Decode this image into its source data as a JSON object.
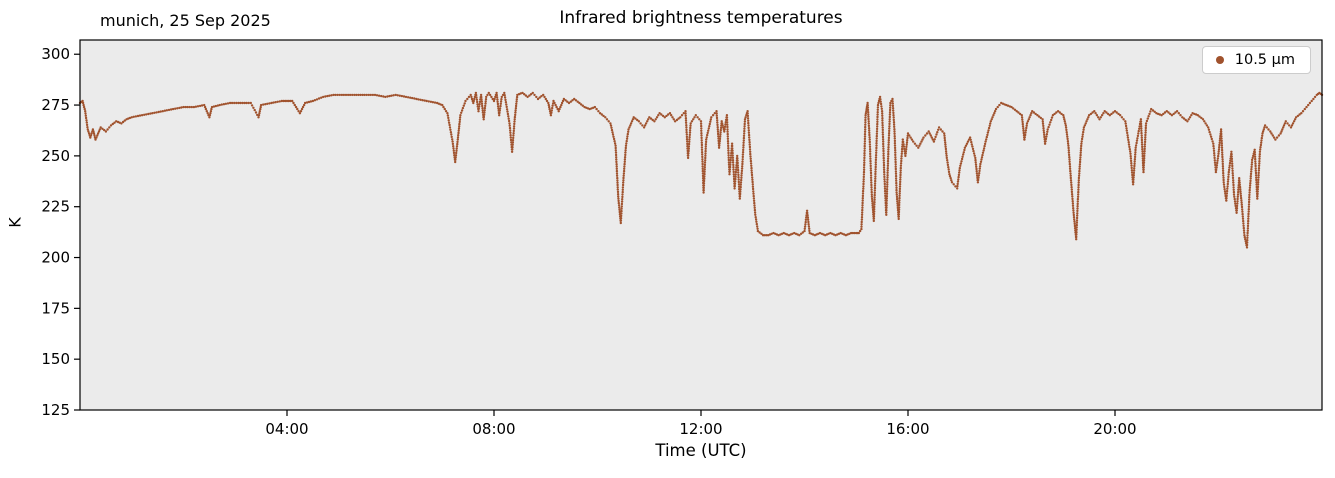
{
  "chart_data": {
    "type": "scatter",
    "title": "Infrared brightness temperatures",
    "annotation": "munich, 25 Sep 2025",
    "xlabel": "Time (UTC)",
    "ylabel": "K",
    "xlim": [
      0,
      24
    ],
    "ylim": [
      125,
      307
    ],
    "grid": false,
    "plot_bg": "#ebebeb",
    "spine_color": "#000000",
    "xticks": [
      {
        "t": 4,
        "label": "04:00"
      },
      {
        "t": 8,
        "label": "08:00"
      },
      {
        "t": 12,
        "label": "12:00"
      },
      {
        "t": 16,
        "label": "16:00"
      },
      {
        "t": 20,
        "label": "20:00"
      }
    ],
    "yticks": [
      {
        "v": 300,
        "label": "300"
      },
      {
        "v": 275,
        "label": "275"
      },
      {
        "v": 250,
        "label": "250"
      },
      {
        "v": 225,
        "label": "225"
      },
      {
        "v": 200,
        "label": "200"
      },
      {
        "v": 175,
        "label": "175"
      },
      {
        "v": 150,
        "label": "150"
      },
      {
        "v": 125,
        "label": "125"
      }
    ],
    "legend": {
      "position": "upper right",
      "entries": [
        {
          "label": "10.5 µm",
          "color": "#a0522d",
          "marker": "dot"
        }
      ]
    },
    "series": [
      {
        "name": "10.5 µm",
        "color": "#a0522d",
        "x_units": "hours UTC",
        "y_units": "K",
        "points": [
          [
            0.0,
            276
          ],
          [
            0.05,
            277
          ],
          [
            0.1,
            272
          ],
          [
            0.15,
            263
          ],
          [
            0.2,
            259
          ],
          [
            0.25,
            263
          ],
          [
            0.3,
            258
          ],
          [
            0.35,
            261
          ],
          [
            0.4,
            264
          ],
          [
            0.5,
            262
          ],
          [
            0.6,
            265
          ],
          [
            0.7,
            267
          ],
          [
            0.8,
            266
          ],
          [
            0.9,
            268
          ],
          [
            1.0,
            269
          ],
          [
            1.2,
            270
          ],
          [
            1.4,
            271
          ],
          [
            1.6,
            272
          ],
          [
            1.8,
            273
          ],
          [
            2.0,
            274
          ],
          [
            2.2,
            274
          ],
          [
            2.4,
            275
          ],
          [
            2.5,
            269
          ],
          [
            2.55,
            274
          ],
          [
            2.7,
            275
          ],
          [
            2.9,
            276
          ],
          [
            3.1,
            276
          ],
          [
            3.3,
            276
          ],
          [
            3.45,
            269
          ],
          [
            3.5,
            275
          ],
          [
            3.7,
            276
          ],
          [
            3.9,
            277
          ],
          [
            4.0,
            277
          ],
          [
            4.1,
            277
          ],
          [
            4.25,
            271
          ],
          [
            4.35,
            276
          ],
          [
            4.5,
            277
          ],
          [
            4.7,
            279
          ],
          [
            4.9,
            280
          ],
          [
            5.1,
            280
          ],
          [
            5.3,
            280
          ],
          [
            5.5,
            280
          ],
          [
            5.7,
            280
          ],
          [
            5.9,
            279
          ],
          [
            6.1,
            280
          ],
          [
            6.3,
            279
          ],
          [
            6.5,
            278
          ],
          [
            6.7,
            277
          ],
          [
            6.9,
            276
          ],
          [
            7.0,
            275
          ],
          [
            7.1,
            271
          ],
          [
            7.2,
            257
          ],
          [
            7.25,
            247
          ],
          [
            7.3,
            258
          ],
          [
            7.35,
            270
          ],
          [
            7.45,
            277
          ],
          [
            7.55,
            280
          ],
          [
            7.6,
            276
          ],
          [
            7.65,
            281
          ],
          [
            7.7,
            272
          ],
          [
            7.75,
            280
          ],
          [
            7.8,
            268
          ],
          [
            7.85,
            279
          ],
          [
            7.9,
            281
          ],
          [
            8.0,
            277
          ],
          [
            8.05,
            281
          ],
          [
            8.1,
            270
          ],
          [
            8.15,
            279
          ],
          [
            8.2,
            281
          ],
          [
            8.3,
            266
          ],
          [
            8.35,
            252
          ],
          [
            8.4,
            268
          ],
          [
            8.45,
            280
          ],
          [
            8.55,
            281
          ],
          [
            8.65,
            279
          ],
          [
            8.75,
            281
          ],
          [
            8.85,
            278
          ],
          [
            8.95,
            280
          ],
          [
            9.05,
            276
          ],
          [
            9.1,
            270
          ],
          [
            9.15,
            277
          ],
          [
            9.25,
            272
          ],
          [
            9.35,
            278
          ],
          [
            9.45,
            276
          ],
          [
            9.55,
            278
          ],
          [
            9.65,
            276
          ],
          [
            9.75,
            274
          ],
          [
            9.85,
            273
          ],
          [
            9.95,
            274
          ],
          [
            10.05,
            271
          ],
          [
            10.15,
            269
          ],
          [
            10.25,
            266
          ],
          [
            10.35,
            255
          ],
          [
            10.4,
            230
          ],
          [
            10.45,
            217
          ],
          [
            10.5,
            238
          ],
          [
            10.55,
            255
          ],
          [
            10.6,
            263
          ],
          [
            10.7,
            269
          ],
          [
            10.8,
            267
          ],
          [
            10.9,
            264
          ],
          [
            11.0,
            269
          ],
          [
            11.1,
            267
          ],
          [
            11.2,
            271
          ],
          [
            11.3,
            269
          ],
          [
            11.4,
            271
          ],
          [
            11.5,
            267
          ],
          [
            11.6,
            269
          ],
          [
            11.7,
            272
          ],
          [
            11.75,
            249
          ],
          [
            11.8,
            266
          ],
          [
            11.9,
            270
          ],
          [
            12.0,
            267
          ],
          [
            12.05,
            232
          ],
          [
            12.1,
            258
          ],
          [
            12.2,
            269
          ],
          [
            12.3,
            272
          ],
          [
            12.35,
            254
          ],
          [
            12.4,
            267
          ],
          [
            12.45,
            262
          ],
          [
            12.5,
            270
          ],
          [
            12.55,
            241
          ],
          [
            12.6,
            256
          ],
          [
            12.65,
            234
          ],
          [
            12.7,
            250
          ],
          [
            12.75,
            229
          ],
          [
            12.8,
            246
          ],
          [
            12.85,
            268
          ],
          [
            12.9,
            272
          ],
          [
            12.95,
            252
          ],
          [
            13.0,
            236
          ],
          [
            13.05,
            221
          ],
          [
            13.1,
            213
          ],
          [
            13.2,
            211
          ],
          [
            13.3,
            211
          ],
          [
            13.4,
            212
          ],
          [
            13.5,
            211
          ],
          [
            13.6,
            212
          ],
          [
            13.7,
            211
          ],
          [
            13.8,
            212
          ],
          [
            13.9,
            211
          ],
          [
            14.0,
            213
          ],
          [
            14.05,
            223
          ],
          [
            14.1,
            212
          ],
          [
            14.2,
            211
          ],
          [
            14.3,
            212
          ],
          [
            14.4,
            211
          ],
          [
            14.5,
            212
          ],
          [
            14.6,
            211
          ],
          [
            14.7,
            212
          ],
          [
            14.8,
            211
          ],
          [
            14.9,
            212
          ],
          [
            15.0,
            212
          ],
          [
            15.05,
            212
          ],
          [
            15.1,
            214
          ],
          [
            15.15,
            242
          ],
          [
            15.18,
            270
          ],
          [
            15.22,
            276
          ],
          [
            15.26,
            258
          ],
          [
            15.3,
            231
          ],
          [
            15.34,
            218
          ],
          [
            15.38,
            248
          ],
          [
            15.42,
            275
          ],
          [
            15.46,
            279
          ],
          [
            15.5,
            272
          ],
          [
            15.54,
            242
          ],
          [
            15.58,
            221
          ],
          [
            15.62,
            252
          ],
          [
            15.66,
            276
          ],
          [
            15.7,
            278
          ],
          [
            15.74,
            262
          ],
          [
            15.78,
            232
          ],
          [
            15.82,
            219
          ],
          [
            15.86,
            244
          ],
          [
            15.9,
            258
          ],
          [
            15.95,
            250
          ],
          [
            16.0,
            261
          ],
          [
            16.1,
            257
          ],
          [
            16.2,
            254
          ],
          [
            16.3,
            259
          ],
          [
            16.4,
            262
          ],
          [
            16.5,
            257
          ],
          [
            16.6,
            264
          ],
          [
            16.7,
            261
          ],
          [
            16.75,
            249
          ],
          [
            16.8,
            241
          ],
          [
            16.85,
            237
          ],
          [
            16.95,
            234
          ],
          [
            17.0,
            244
          ],
          [
            17.1,
            254
          ],
          [
            17.2,
            259
          ],
          [
            17.3,
            249
          ],
          [
            17.35,
            237
          ],
          [
            17.4,
            246
          ],
          [
            17.5,
            257
          ],
          [
            17.6,
            267
          ],
          [
            17.7,
            273
          ],
          [
            17.8,
            276
          ],
          [
            17.9,
            275
          ],
          [
            18.0,
            274
          ],
          [
            18.1,
            272
          ],
          [
            18.2,
            270
          ],
          [
            18.25,
            258
          ],
          [
            18.3,
            266
          ],
          [
            18.4,
            272
          ],
          [
            18.5,
            270
          ],
          [
            18.6,
            268
          ],
          [
            18.65,
            256
          ],
          [
            18.7,
            263
          ],
          [
            18.8,
            270
          ],
          [
            18.9,
            272
          ],
          [
            19.0,
            270
          ],
          [
            19.05,
            265
          ],
          [
            19.1,
            255
          ],
          [
            19.15,
            238
          ],
          [
            19.2,
            222
          ],
          [
            19.25,
            209
          ],
          [
            19.3,
            238
          ],
          [
            19.35,
            256
          ],
          [
            19.4,
            264
          ],
          [
            19.5,
            270
          ],
          [
            19.6,
            272
          ],
          [
            19.7,
            268
          ],
          [
            19.8,
            272
          ],
          [
            19.9,
            270
          ],
          [
            20.0,
            272
          ],
          [
            20.1,
            270
          ],
          [
            20.2,
            267
          ],
          [
            20.3,
            251
          ],
          [
            20.35,
            236
          ],
          [
            20.4,
            254
          ],
          [
            20.5,
            268
          ],
          [
            20.55,
            242
          ],
          [
            20.6,
            266
          ],
          [
            20.7,
            273
          ],
          [
            20.8,
            271
          ],
          [
            20.9,
            270
          ],
          [
            21.0,
            272
          ],
          [
            21.1,
            270
          ],
          [
            21.2,
            272
          ],
          [
            21.3,
            269
          ],
          [
            21.4,
            267
          ],
          [
            21.5,
            271
          ],
          [
            21.6,
            270
          ],
          [
            21.7,
            268
          ],
          [
            21.8,
            264
          ],
          [
            21.9,
            256
          ],
          [
            21.95,
            242
          ],
          [
            22.0,
            251
          ],
          [
            22.05,
            263
          ],
          [
            22.1,
            237
          ],
          [
            22.15,
            228
          ],
          [
            22.2,
            242
          ],
          [
            22.25,
            252
          ],
          [
            22.3,
            231
          ],
          [
            22.35,
            222
          ],
          [
            22.4,
            239
          ],
          [
            22.45,
            226
          ],
          [
            22.5,
            211
          ],
          [
            22.55,
            205
          ],
          [
            22.6,
            232
          ],
          [
            22.65,
            248
          ],
          [
            22.7,
            253
          ],
          [
            22.75,
            229
          ],
          [
            22.8,
            252
          ],
          [
            22.85,
            261
          ],
          [
            22.9,
            265
          ],
          [
            23.0,
            262
          ],
          [
            23.1,
            258
          ],
          [
            23.2,
            261
          ],
          [
            23.3,
            267
          ],
          [
            23.4,
            264
          ],
          [
            23.5,
            269
          ],
          [
            23.6,
            271
          ],
          [
            23.7,
            274
          ],
          [
            23.8,
            277
          ],
          [
            23.9,
            280
          ],
          [
            23.95,
            281
          ],
          [
            24.0,
            280
          ]
        ]
      }
    ]
  }
}
